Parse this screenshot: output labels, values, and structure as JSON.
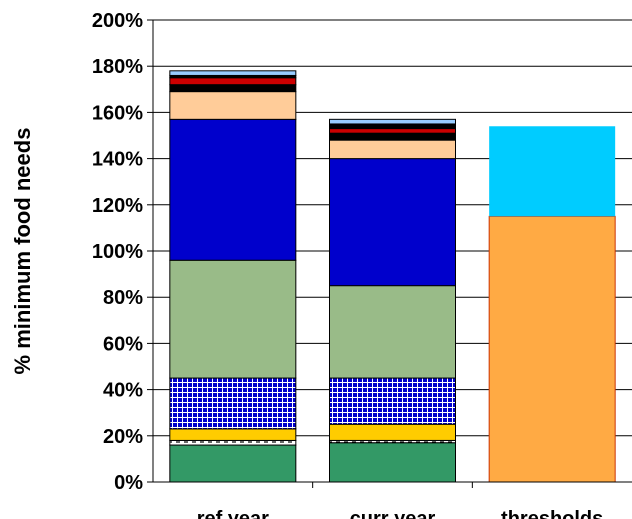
{
  "chart_data": {
    "type": "bar",
    "stacked": true,
    "title": "",
    "xlabel": "",
    "ylabel": "% minimum food needs",
    "ylim": [
      0,
      200
    ],
    "y_ticks": [
      "0%",
      "20%",
      "40%",
      "60%",
      "80%",
      "100%",
      "120%",
      "140%",
      "160%",
      "180%",
      "200%"
    ],
    "y_tick_values": [
      0,
      20,
      40,
      60,
      80,
      100,
      120,
      140,
      160,
      180,
      200
    ],
    "grid": true,
    "categories": [
      "ref year",
      "curr year",
      "thresholds"
    ],
    "series": [
      {
        "color": "#339966",
        "values": [
          16,
          17,
          0
        ]
      },
      {
        "color": "#ffffff",
        "pattern": "dashed-black",
        "values": [
          2,
          1,
          0
        ]
      },
      {
        "color": "#ffcc00",
        "values": [
          5,
          7,
          0
        ]
      },
      {
        "color": "#0000cc",
        "pattern": "white-grid",
        "values": [
          22,
          20,
          0
        ]
      },
      {
        "color": "#99bb88",
        "values": [
          51,
          40,
          0
        ]
      },
      {
        "color": "#0000cc",
        "values": [
          61,
          55,
          0
        ]
      },
      {
        "color": "#ffcc99",
        "values": [
          12,
          8,
          0
        ]
      },
      {
        "color": "#000000",
        "values": [
          3,
          3,
          0
        ]
      },
      {
        "color": "#cc0000",
        "values": [
          3,
          2,
          0
        ]
      },
      {
        "color": "#000000",
        "values": [
          1,
          2,
          0
        ]
      },
      {
        "color": "#99ccff",
        "values": [
          2,
          2,
          0
        ]
      },
      {
        "color": "#ffaa44",
        "values": [
          0,
          0,
          115
        ]
      },
      {
        "color": "#00ccff",
        "values": [
          0,
          0,
          39
        ]
      }
    ]
  }
}
